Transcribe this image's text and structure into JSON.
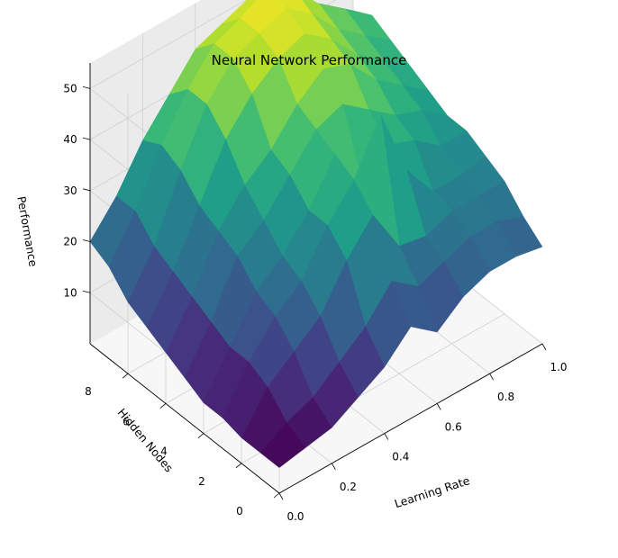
{
  "chart_data": {
    "type": "surface3d",
    "title": "Neural Network Performance",
    "xlabel": "Learning Rate",
    "ylabel": "Hidden Nodes",
    "zlabel": "Performance",
    "xlim": [
      0.0,
      1.0
    ],
    "ylim": [
      0,
      10
    ],
    "zlim": [
      0,
      55
    ],
    "xticks": [
      0.0,
      0.2,
      0.4,
      0.6,
      0.8,
      1.0
    ],
    "xtick_labels": [
      "0.0",
      "0.2",
      "0.4",
      "0.6",
      "0.8",
      "1.0"
    ],
    "yticks": [
      0,
      2,
      4,
      6,
      8
    ],
    "ytick_labels": [
      "0",
      "2",
      "4",
      "6",
      "8"
    ],
    "zticks": [
      10,
      20,
      30,
      40,
      50
    ],
    "ztick_labels": [
      "10",
      "20",
      "30",
      "40",
      "50"
    ],
    "colormap": "viridis",
    "grid": true,
    "x": [
      0.0,
      0.1,
      0.2,
      0.3,
      0.4,
      0.5,
      0.6,
      0.7,
      0.8,
      0.9,
      1.0
    ],
    "y": [
      0,
      1,
      2,
      3,
      4,
      5,
      6,
      7,
      8,
      9,
      10
    ],
    "z": [
      [
        5,
        6,
        7,
        10,
        13,
        18,
        14,
        18,
        20,
        20,
        19
      ],
      [
        5,
        8,
        10,
        14,
        18,
        24,
        20,
        22,
        24,
        24,
        22
      ],
      [
        5,
        12,
        16,
        20,
        28,
        34,
        25,
        24,
        26,
        26,
        26
      ],
      [
        6,
        14,
        20,
        24,
        32,
        38,
        48,
        34,
        27,
        27,
        28
      ],
      [
        6,
        14,
        22,
        26,
        32,
        40,
        32,
        36,
        34,
        30,
        30
      ],
      [
        8,
        16,
        26,
        30,
        36,
        42,
        44,
        40,
        36,
        34,
        30
      ],
      [
        10,
        18,
        28,
        34,
        38,
        44,
        48,
        46,
        40,
        36,
        32
      ],
      [
        12,
        20,
        30,
        40,
        46,
        50,
        52,
        48,
        42,
        38,
        34
      ],
      [
        14,
        22,
        34,
        44,
        50,
        52,
        54,
        50,
        44,
        40,
        36
      ],
      [
        18,
        26,
        36,
        44,
        50,
        52,
        55,
        52,
        46,
        42,
        38
      ],
      [
        20,
        26,
        34,
        40,
        46,
        48,
        50,
        48,
        44,
        40,
        36
      ]
    ]
  }
}
